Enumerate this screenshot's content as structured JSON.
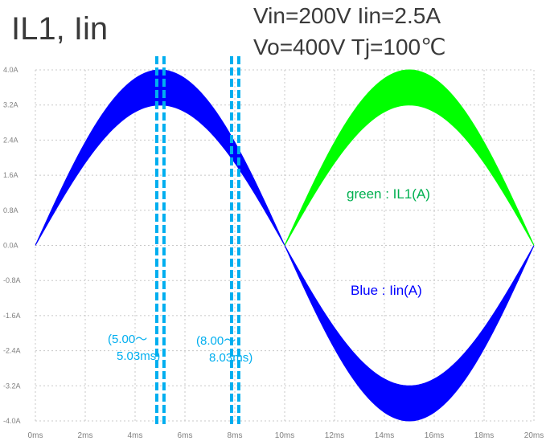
{
  "title": "IL1, Iin",
  "conditions": [
    "Vin=200V Iin=2.5A",
    "Vo=400V Tj=100℃"
  ],
  "legend": {
    "green": "green : IL1(A)",
    "blue": "Blue : Iin(A)"
  },
  "markers": [
    {
      "line1": "(5.00～",
      "line2": "5.03ms)",
      "t_ms": [
        5.0,
        5.03
      ]
    },
    {
      "line1": "(8.00～",
      "line2": "8.03ms)",
      "t_ms": [
        8.0,
        8.03
      ]
    }
  ],
  "colors": {
    "blue": "#0000ff",
    "green": "#00ff00",
    "marker": "#00aeef",
    "grid": "#c8c8c8",
    "tick": "#808080"
  },
  "chart_data": {
    "type": "line",
    "xunit": "ms",
    "xlim": [
      0,
      20
    ],
    "ylim": [
      -4.0,
      4.0
    ],
    "xticks": [
      "0ms",
      "2ms",
      "4ms",
      "6ms",
      "8ms",
      "10ms",
      "12ms",
      "14ms",
      "16ms",
      "18ms",
      "20ms"
    ],
    "xtick_values": [
      0,
      2,
      4,
      6,
      8,
      10,
      12,
      14,
      16,
      18,
      20
    ],
    "yticks": [
      "4.0A",
      "3.2A",
      "2.4A",
      "1.6A",
      "0.8A",
      "0.0A",
      "-0.8A",
      "-1.6A",
      "-2.4A",
      "-3.2A",
      "-4.0A"
    ],
    "ytick_values": [
      4.0,
      3.2,
      2.4,
      1.6,
      0.8,
      0.0,
      -0.8,
      -1.6,
      -2.4,
      -3.2,
      -4.0
    ],
    "grid": true,
    "series": [
      {
        "name": "Iin(A)",
        "color": "#0000ff",
        "x": [
          0,
          10,
          20
        ],
        "envelope": {
          "upper_peak_A": 4.0,
          "lower_peak_A": 3.2,
          "segments": [
            {
              "x_range": [
                0,
                10
              ],
              "sign": 1
            },
            {
              "x_range": [
                10,
                20
              ],
              "sign": -1
            }
          ]
        }
      },
      {
        "name": "IL1(A)",
        "color": "#00ff00",
        "envelope": {
          "upper_peak_A": 4.0,
          "lower_peak_A": 3.2,
          "segments": [
            {
              "x_range": [
                10,
                20
              ],
              "sign": 1
            }
          ]
        }
      }
    ]
  }
}
